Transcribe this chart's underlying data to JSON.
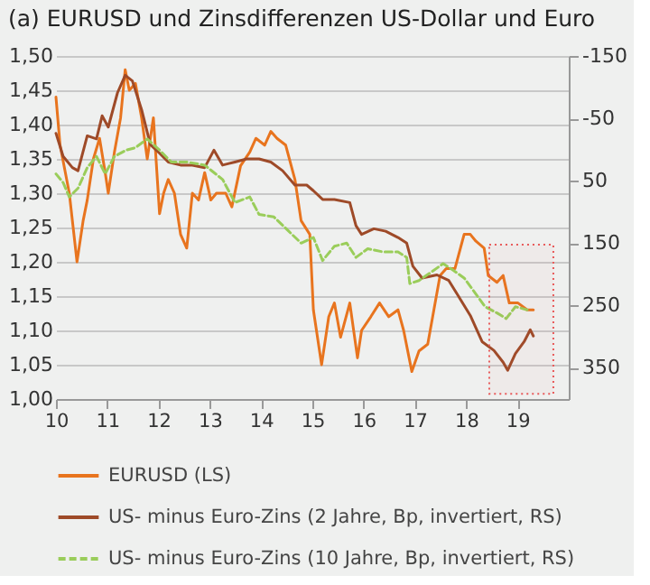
{
  "chart_data": {
    "type": "line",
    "title": "(a) EURUSD und Zinsdifferenzen US-Dollar und Euro",
    "xlim": [
      10,
      20
    ],
    "xticks": [
      10,
      11,
      12,
      13,
      14,
      15,
      16,
      17,
      18,
      19
    ],
    "ylim": [
      1.0,
      1.5
    ],
    "yticks": [
      {
        "value": 1.0,
        "label": "1,00"
      },
      {
        "value": 1.05,
        "label": "1,05"
      },
      {
        "value": 1.1,
        "label": "1,10"
      },
      {
        "value": 1.15,
        "label": "1,15"
      },
      {
        "value": 1.2,
        "label": "1,20"
      },
      {
        "value": 1.25,
        "label": "1,25"
      },
      {
        "value": 1.3,
        "label": "1,30"
      },
      {
        "value": 1.35,
        "label": "1,35"
      },
      {
        "value": 1.4,
        "label": "1,40"
      },
      {
        "value": 1.45,
        "label": "1,45"
      },
      {
        "value": 1.5,
        "label": "1,50"
      }
    ],
    "y2lim": [
      400,
      -150
    ],
    "y2ticks": [
      -150,
      -50,
      50,
      150,
      250,
      350
    ],
    "grid": "y",
    "legend": "bottom",
    "bands": [
      {
        "axis": "x",
        "from": 18.45,
        "to": 19.7,
        "color": "#e85a5a"
      }
    ],
    "series": [
      {
        "name": "EURUSD (LS)",
        "color": "#e8741e",
        "line_style": "solid",
        "x": [
          10.0,
          10.08,
          10.26,
          10.41,
          10.53,
          10.61,
          10.73,
          10.85,
          10.96,
          11.02,
          11.14,
          11.26,
          11.35,
          11.43,
          11.55,
          11.67,
          11.78,
          11.9,
          12.02,
          12.1,
          12.19,
          12.31,
          12.43,
          12.55,
          12.66,
          12.78,
          12.9,
          13.02,
          13.13,
          13.31,
          13.43,
          13.6,
          13.78,
          13.9,
          14.07,
          14.19,
          14.31,
          14.48,
          14.66,
          14.78,
          14.95,
          15.02,
          15.18,
          15.32,
          15.43,
          15.55,
          15.73,
          15.88,
          15.96,
          16.14,
          16.31,
          16.49,
          16.67,
          16.78,
          16.94,
          17.08,
          17.25,
          17.37,
          17.49,
          17.61,
          17.78,
          17.96,
          18.08,
          18.19,
          18.35,
          18.43,
          18.6,
          18.72,
          18.84,
          19.01,
          19.19,
          19.31
        ],
        "values": [
          1.44,
          1.37,
          1.3,
          1.2,
          1.26,
          1.29,
          1.35,
          1.38,
          1.33,
          1.3,
          1.36,
          1.41,
          1.48,
          1.45,
          1.46,
          1.41,
          1.35,
          1.41,
          1.27,
          1.3,
          1.32,
          1.3,
          1.24,
          1.22,
          1.3,
          1.29,
          1.33,
          1.29,
          1.3,
          1.3,
          1.28,
          1.34,
          1.36,
          1.38,
          1.37,
          1.39,
          1.38,
          1.37,
          1.32,
          1.26,
          1.24,
          1.13,
          1.05,
          1.12,
          1.14,
          1.09,
          1.14,
          1.06,
          1.1,
          1.12,
          1.14,
          1.12,
          1.13,
          1.1,
          1.04,
          1.07,
          1.08,
          1.13,
          1.18,
          1.19,
          1.19,
          1.24,
          1.24,
          1.23,
          1.22,
          1.18,
          1.17,
          1.18,
          1.14,
          1.14,
          1.13,
          1.13
        ]
      },
      {
        "name": "US- minus Euro-Zins (2 Jahre, Bp, invertiert, RS)",
        "color": "#9e4a28",
        "line_style": "solid",
        "axis": "y2",
        "x": [
          10.0,
          10.14,
          10.32,
          10.43,
          10.61,
          10.79,
          10.9,
          11.02,
          11.2,
          11.35,
          11.49,
          11.67,
          11.84,
          12.02,
          12.19,
          12.43,
          12.66,
          12.9,
          13.08,
          13.25,
          13.49,
          13.72,
          13.96,
          14.19,
          14.42,
          14.66,
          14.89,
          15.02,
          15.2,
          15.43,
          15.73,
          15.85,
          15.96,
          16.2,
          16.43,
          16.67,
          16.84,
          16.96,
          17.14,
          17.43,
          17.66,
          17.84,
          18.08,
          18.31,
          18.54,
          18.72,
          18.81,
          18.96,
          19.13,
          19.25,
          19.31
        ],
        "values": [
          -26,
          11,
          29,
          34,
          -22,
          -17,
          -54,
          -36,
          -91,
          -119,
          -110,
          -64,
          -8,
          6,
          20,
          25,
          25,
          29,
          1,
          25,
          20,
          15,
          15,
          20,
          34,
          57,
          57,
          66,
          80,
          80,
          85,
          122,
          136,
          127,
          131,
          141,
          150,
          187,
          206,
          201,
          210,
          234,
          266,
          308,
          322,
          341,
          354,
          327,
          308,
          289,
          299
        ]
      },
      {
        "name": "US- minus Euro-Zins (10 Jahre, Bp, invertiert, RS)",
        "color": "#9acd5a",
        "line_style": "dashed",
        "axis": "y2",
        "x": [
          10.0,
          10.14,
          10.26,
          10.43,
          10.61,
          10.79,
          10.96,
          11.14,
          11.37,
          11.55,
          11.78,
          12.02,
          12.25,
          12.55,
          12.9,
          13.25,
          13.49,
          13.78,
          13.96,
          14.25,
          14.54,
          14.78,
          15.02,
          15.2,
          15.43,
          15.67,
          15.85,
          16.08,
          16.37,
          16.67,
          16.84,
          16.9,
          17.08,
          17.31,
          17.55,
          17.72,
          17.96,
          18.13,
          18.37,
          18.6,
          18.78,
          18.96,
          19.19
        ],
        "values": [
          39,
          53,
          76,
          62,
          29,
          11,
          39,
          11,
          1,
          -3,
          -17,
          1,
          20,
          20,
          25,
          48,
          85,
          76,
          104,
          108,
          131,
          150,
          141,
          178,
          155,
          150,
          173,
          159,
          164,
          164,
          173,
          215,
          210,
          197,
          183,
          192,
          206,
          225,
          252,
          262,
          271,
          252,
          257
        ]
      }
    ]
  }
}
